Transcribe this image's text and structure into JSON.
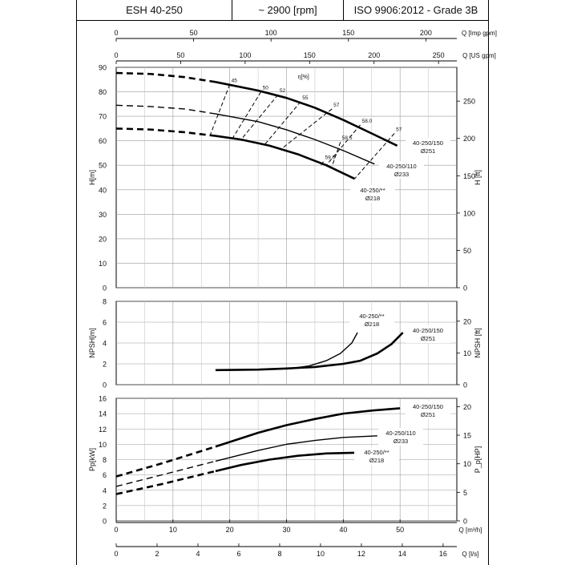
{
  "header": {
    "model": "ESH 40-250",
    "speed": "~ 2900 [rpm]",
    "standard": "ISO 9906:2012 - Grade 3B"
  },
  "chart_data": {
    "type": "line",
    "axes": {
      "q_imp_gpm": {
        "label": "Q [Imp gpm]",
        "range": [
          0,
          220
        ],
        "ticks": [
          0,
          50,
          100,
          150,
          200
        ]
      },
      "q_us_gpm": {
        "label": "Q [US gpm]",
        "range": [
          0,
          264.2
        ],
        "ticks": [
          0,
          50,
          100,
          150,
          200,
          250
        ]
      },
      "q_m3h": {
        "label": "Q [m³/h]",
        "range": [
          0,
          60
        ],
        "ticks": [
          0,
          10,
          20,
          30,
          40,
          50
        ]
      },
      "q_ls": {
        "label": "Q [l/s]",
        "range": [
          0,
          16.67
        ],
        "ticks": [
          0,
          2,
          4,
          6,
          8,
          10,
          12,
          14,
          16
        ]
      }
    },
    "panels": [
      {
        "id": "head",
        "ylabel": "H[m]",
        "ylabel_right": "H [ft]",
        "ylim": [
          0,
          90
        ],
        "yticks": [
          0,
          10,
          20,
          30,
          40,
          50,
          60,
          70,
          80,
          90
        ],
        "yticks_right": [
          0,
          50,
          100,
          150,
          200,
          250
        ],
        "series": [
          {
            "name": "40-250/150",
            "diameter": "Ø251",
            "weight": "heavy",
            "dashed": [
              [
                0,
                87.7
              ],
              [
                6,
                87.3
              ],
              [
                12,
                86
              ],
              [
                17.5,
                84
              ]
            ],
            "solid": [
              [
                17.5,
                84
              ],
              [
                25,
                80.5
              ],
              [
                30,
                77.5
              ],
              [
                35,
                73.5
              ],
              [
                40,
                68.5
              ],
              [
                45,
                63
              ],
              [
                49.5,
                58
              ]
            ]
          },
          {
            "name": "40-250/110",
            "diameter": "Ø233",
            "weight": "medium",
            "dashed": [
              [
                0,
                74.5
              ],
              [
                6,
                74
              ],
              [
                12,
                73
              ],
              [
                17.5,
                71
              ]
            ],
            "solid": [
              [
                17.5,
                71
              ],
              [
                25,
                67.8
              ],
              [
                30,
                64.5
              ],
              [
                35,
                60.5
              ],
              [
                40,
                56
              ],
              [
                45.5,
                50.5
              ]
            ]
          },
          {
            "name": "40-250/**",
            "diameter": "Ø218",
            "weight": "heavy",
            "dashed": [
              [
                0,
                65
              ],
              [
                6,
                64.6
              ],
              [
                12,
                63.5
              ],
              [
                17.5,
                62
              ]
            ],
            "solid": [
              [
                17.5,
                62
              ],
              [
                22,
                60.5
              ],
              [
                27,
                58
              ],
              [
                32,
                54.5
              ],
              [
                37,
                50
              ],
              [
                42,
                44.5
              ]
            ]
          }
        ],
        "efficiency_label": "η[%]",
        "efficiency_lines": [
          {
            "label": "45",
            "points": [
              [
                20,
                83
              ],
              [
                16.5,
                62
              ]
            ]
          },
          {
            "label": "50",
            "points": [
              [
                25.5,
                80
              ],
              [
                20.5,
                61
              ]
            ]
          },
          {
            "label": "52",
            "points": [
              [
                28.5,
                78.8
              ],
              [
                22,
                60.5
              ]
            ]
          },
          {
            "label": "55",
            "points": [
              [
                32.5,
                76
              ],
              [
                26,
                58
              ]
            ]
          },
          {
            "label": "57",
            "points": [
              [
                38,
                73
              ],
              [
                29,
                56.5
              ]
            ]
          },
          {
            "label": "58.0",
            "points": [
              [
                43,
                66.5
              ],
              [
                37,
                50
              ]
            ]
          },
          {
            "label": "58.5",
            "points": [
              [
                39.5,
                59.5
              ],
              [
                38,
                49.5
              ]
            ]
          },
          {
            "label": "59.0",
            "points": [
              [
                36.5,
                51.5
              ],
              [
                36,
                50
              ]
            ]
          },
          {
            "label": "57",
            "points": [
              [
                49,
                63
              ],
              [
                42,
                44.5
              ]
            ]
          }
        ]
      },
      {
        "id": "npsh",
        "ylabel": "NPSH[m]",
        "ylabel_right": "NPSH [ft]",
        "ylim": [
          0,
          8
        ],
        "yticks": [
          0,
          2,
          4,
          6,
          8
        ],
        "yticks_right": [
          0,
          10,
          20
        ],
        "series": [
          {
            "name": "40-250/150",
            "diameter": "Ø251",
            "weight": "heavy",
            "solid": [
              [
                17.5,
                1.4
              ],
              [
                25,
                1.45
              ],
              [
                30,
                1.55
              ],
              [
                35,
                1.7
              ],
              [
                40,
                2.0
              ],
              [
                43,
                2.3
              ],
              [
                46,
                3.0
              ],
              [
                48.5,
                3.9
              ],
              [
                50.5,
                5.0
              ]
            ]
          },
          {
            "name": "40-250/**",
            "diameter": "Ø218",
            "weight": "medium",
            "solid": [
              [
                30,
                1.5
              ],
              [
                34,
                1.8
              ],
              [
                37,
                2.3
              ],
              [
                39.5,
                3.0
              ],
              [
                41.5,
                4.0
              ],
              [
                42.5,
                5.0
              ]
            ]
          }
        ]
      },
      {
        "id": "power",
        "ylabel": "Pp[kW]",
        "ylabel_right": "P_p[HP]",
        "ylim": [
          0,
          16
        ],
        "yticks": [
          0,
          2,
          4,
          6,
          8,
          10,
          12,
          14,
          16
        ],
        "yticks_right": [
          0,
          5,
          10,
          15,
          20
        ],
        "series": [
          {
            "name": "40-250/150",
            "diameter": "Ø251",
            "weight": "heavy",
            "dashed": [
              [
                0,
                5.8
              ],
              [
                8,
                7.5
              ],
              [
                17.5,
                9.7
              ]
            ],
            "solid": [
              [
                17.5,
                9.7
              ],
              [
                25,
                11.5
              ],
              [
                30,
                12.5
              ],
              [
                35,
                13.3
              ],
              [
                40,
                14
              ],
              [
                45,
                14.4
              ],
              [
                50,
                14.7
              ]
            ]
          },
          {
            "name": "40-250/110",
            "diameter": "Ø233",
            "weight": "medium",
            "dashed": [
              [
                0,
                4.5
              ],
              [
                8,
                6
              ],
              [
                17.5,
                7.8
              ]
            ],
            "solid": [
              [
                17.5,
                7.8
              ],
              [
                25,
                9.2
              ],
              [
                30,
                10
              ],
              [
                35,
                10.5
              ],
              [
                40,
                10.9
              ],
              [
                46,
                11.1
              ]
            ]
          },
          {
            "name": "40-250/**",
            "diameter": "Ø218",
            "weight": "heavy",
            "dashed": [
              [
                0,
                3.5
              ],
              [
                8,
                4.8
              ],
              [
                17.5,
                6.5
              ]
            ],
            "solid": [
              [
                17.5,
                6.5
              ],
              [
                22,
                7.3
              ],
              [
                27,
                8
              ],
              [
                32,
                8.5
              ],
              [
                37,
                8.8
              ],
              [
                42,
                8.9
              ]
            ]
          }
        ]
      }
    ],
    "curve_labels": {
      "head": [
        {
          "name": "40-250/150",
          "diameter": "Ø251"
        },
        {
          "name": "40-250/110",
          "diameter": "Ø233"
        },
        {
          "name": "40-250/**",
          "diameter": "Ø218"
        }
      ],
      "npsh": [
        {
          "name": "40-250/**",
          "diameter": "Ø218"
        },
        {
          "name": "40-250/150",
          "diameter": "Ø251"
        }
      ],
      "power": [
        {
          "name": "40-250/150",
          "diameter": "Ø251"
        },
        {
          "name": "40-250/110",
          "diameter": "Ø233"
        },
        {
          "name": "40-250/**",
          "diameter": "Ø218"
        }
      ]
    },
    "grid": true
  }
}
